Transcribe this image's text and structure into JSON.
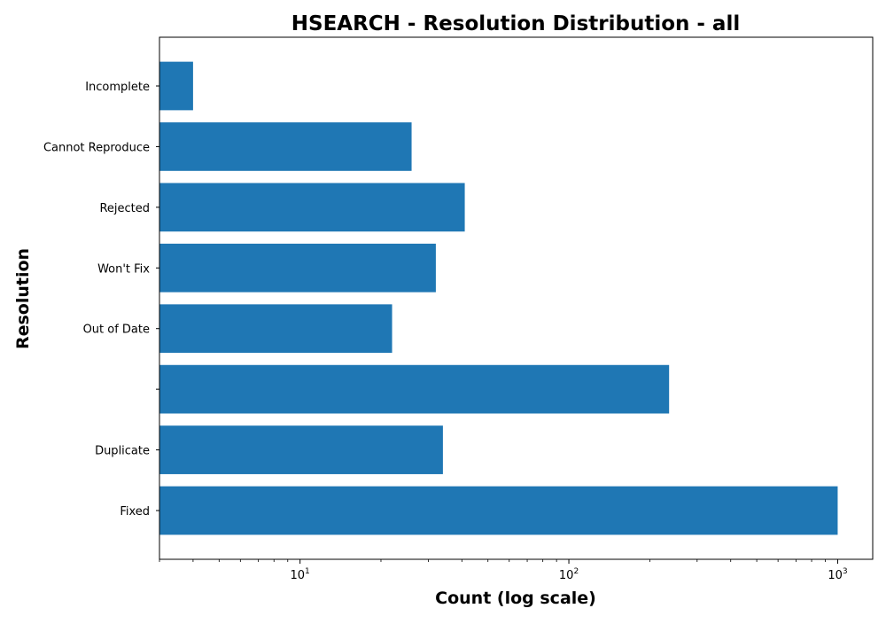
{
  "chart_data": {
    "type": "bar",
    "orientation": "horizontal",
    "title": "HSEARCH - Resolution Distribution - all",
    "xlabel": "Count (log scale)",
    "ylabel": "Resolution",
    "x_scale": "log",
    "xlim": [
      3,
      1350
    ],
    "grid": false,
    "categories": [
      "Fixed",
      "Duplicate",
      "",
      "Out of Date",
      "Won't Fix",
      "Rejected",
      "Cannot Reproduce",
      "Incomplete"
    ],
    "values": [
      1000,
      34,
      236,
      22,
      32,
      41,
      26,
      4
    ],
    "x_ticks": [
      {
        "base": "10",
        "exp": "1",
        "value": 10
      },
      {
        "base": "10",
        "exp": "2",
        "value": 100
      },
      {
        "base": "10",
        "exp": "3",
        "value": 1000
      }
    ],
    "bar_color": "#1f77b4"
  }
}
